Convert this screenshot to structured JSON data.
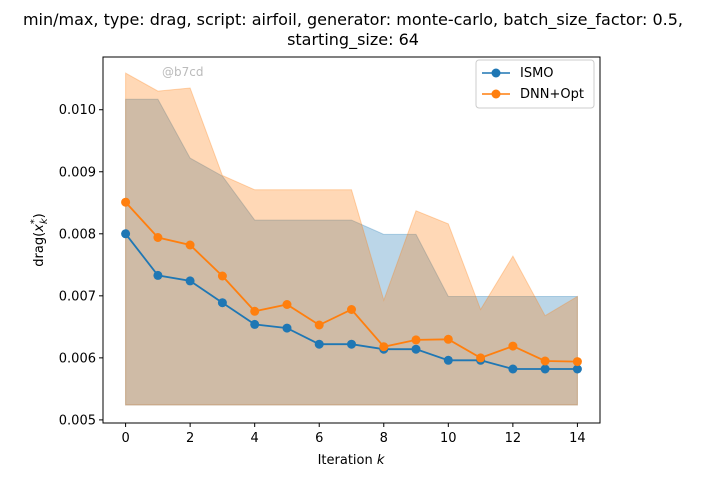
{
  "chart_data": {
    "type": "line",
    "title_lines": [
      "min/max, type: drag, script: airfoil, generator: monte-carlo, batch_size_factor: 0.5,",
      "starting_size: 64"
    ],
    "xlabel": "Iteration k",
    "ylabel": "drag(x*_k)",
    "watermark": "@b7cd",
    "xlim": [
      -0.7,
      14.7
    ],
    "ylim": [
      0.00495,
      0.01085
    ],
    "xticks": [
      0,
      2,
      4,
      6,
      8,
      10,
      12,
      14
    ],
    "yticks": [
      0.005,
      0.006,
      0.007,
      0.008,
      0.009,
      0.01
    ],
    "ytick_labels": [
      "0.005",
      "0.006",
      "0.007",
      "0.008",
      "0.009",
      "0.010"
    ],
    "legend_position": "upper right",
    "grid": false,
    "x": [
      0,
      1,
      2,
      3,
      4,
      5,
      6,
      7,
      8,
      9,
      10,
      11,
      12,
      13,
      14
    ],
    "series": [
      {
        "name": "ISMO",
        "color": "#1f77b4",
        "values": [
          0.008,
          0.00733,
          0.00724,
          0.00689,
          0.00654,
          0.00648,
          0.00622,
          0.00622,
          0.00614,
          0.00614,
          0.00596,
          0.00596,
          0.00582,
          0.00582,
          0.00582
        ],
        "band_min": [
          0.00524,
          0.00524,
          0.00524,
          0.00524,
          0.00524,
          0.00524,
          0.00524,
          0.00524,
          0.00524,
          0.00524,
          0.00524,
          0.00524,
          0.00524,
          0.00524,
          0.00524
        ],
        "band_max": [
          0.01017,
          0.01017,
          0.00922,
          0.00893,
          0.00822,
          0.00822,
          0.00822,
          0.00822,
          0.00799,
          0.00799,
          0.00699,
          0.00699,
          0.00699,
          0.00699,
          0.00699
        ]
      },
      {
        "name": "DNN+Opt",
        "color": "#ff7f0e",
        "values": [
          0.00851,
          0.00794,
          0.00782,
          0.00732,
          0.00675,
          0.00686,
          0.00653,
          0.00678,
          0.00618,
          0.00629,
          0.0063,
          0.006,
          0.00619,
          0.00595,
          0.00594
        ],
        "band_min": [
          0.00524,
          0.00524,
          0.00524,
          0.00524,
          0.00524,
          0.00524,
          0.00524,
          0.00524,
          0.00524,
          0.00524,
          0.00524,
          0.00524,
          0.00524,
          0.00524,
          0.00524
        ],
        "band_max": [
          0.01059,
          0.0103,
          0.01035,
          0.00894,
          0.00871,
          0.00871,
          0.00871,
          0.00871,
          0.00693,
          0.00837,
          0.00816,
          0.00678,
          0.00764,
          0.00668,
          0.00699
        ]
      }
    ]
  }
}
